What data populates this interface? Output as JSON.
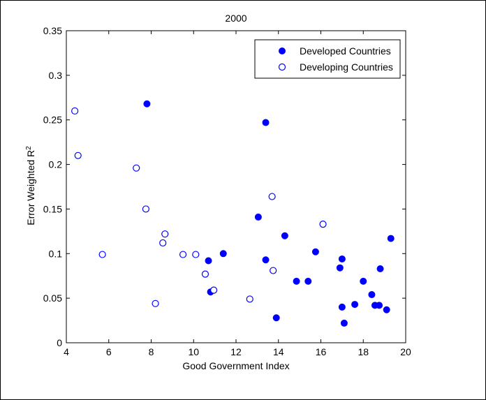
{
  "chart_data": {
    "type": "scatter",
    "title": "2000",
    "xlabel": "Good Government Index",
    "ylabel": "Error Weighted R",
    "ylabel_superscript": "2",
    "xlim": [
      4,
      20
    ],
    "ylim": [
      0,
      0.35
    ],
    "x_ticks": [
      4,
      6,
      8,
      10,
      12,
      14,
      16,
      18,
      20
    ],
    "x_tick_labels": [
      "4",
      "6",
      "8",
      "10",
      "12",
      "14",
      "16",
      "18",
      "20"
    ],
    "y_ticks": [
      0,
      0.05,
      0.1,
      0.15,
      0.2,
      0.25,
      0.3,
      0.35
    ],
    "y_tick_labels": [
      "0",
      "0.05",
      "0.1",
      "0.15",
      "0.2",
      "0.25",
      "0.3",
      "0.35"
    ],
    "grid": false,
    "legend_position": "top-right",
    "series": [
      {
        "name": "Developed Countries",
        "marker": "filled-circle",
        "color": "#0000ff",
        "points": [
          [
            7.8,
            0.268
          ],
          [
            13.4,
            0.247
          ],
          [
            10.7,
            0.092
          ],
          [
            10.8,
            0.057
          ],
          [
            11.4,
            0.1
          ],
          [
            13.05,
            0.141
          ],
          [
            13.4,
            0.093
          ],
          [
            14.3,
            0.12
          ],
          [
            13.9,
            0.028
          ],
          [
            14.85,
            0.069
          ],
          [
            15.4,
            0.069
          ],
          [
            15.75,
            0.102
          ],
          [
            16.9,
            0.084
          ],
          [
            17.0,
            0.094
          ],
          [
            17.0,
            0.04
          ],
          [
            17.1,
            0.022
          ],
          [
            17.6,
            0.043
          ],
          [
            18.0,
            0.069
          ],
          [
            18.4,
            0.054
          ],
          [
            18.55,
            0.042
          ],
          [
            18.75,
            0.042
          ],
          [
            18.8,
            0.083
          ],
          [
            19.1,
            0.037
          ],
          [
            19.3,
            0.117
          ]
        ]
      },
      {
        "name": "Developing Countries",
        "marker": "open-circle",
        "color": "#0000ff",
        "points": [
          [
            4.4,
            0.26
          ],
          [
            4.55,
            0.21
          ],
          [
            5.7,
            0.099
          ],
          [
            7.3,
            0.196
          ],
          [
            7.75,
            0.15
          ],
          [
            8.2,
            0.044
          ],
          [
            8.55,
            0.112
          ],
          [
            8.65,
            0.122
          ],
          [
            9.5,
            0.099
          ],
          [
            10.1,
            0.099
          ],
          [
            10.55,
            0.077
          ],
          [
            10.95,
            0.059
          ],
          [
            12.65,
            0.049
          ],
          [
            13.7,
            0.164
          ],
          [
            13.75,
            0.081
          ],
          [
            16.1,
            0.133
          ]
        ]
      }
    ]
  }
}
